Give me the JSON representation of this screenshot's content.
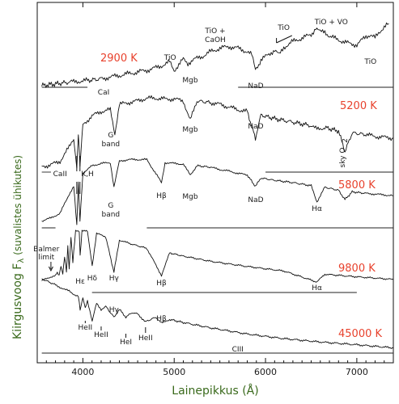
{
  "chart_data": {
    "type": "line",
    "xlabel": "Lainepikkus (Å)",
    "ylabel": "Kiirgusvoog F",
    "ylabel_sub": "λ",
    "ylabel_units": "(suvalistes ühikutes)",
    "xlim": [
      3500,
      7400
    ],
    "x_ticks": [
      4000,
      5000,
      6000,
      7000
    ],
    "series": [
      {
        "name": "2900 K",
        "x": [
          3550,
          3700,
          3850,
          3950,
          4050,
          4200,
          4300,
          4400,
          4500,
          4600,
          4700,
          4800,
          4900,
          4950,
          5000,
          5100,
          5150,
          5200,
          5300,
          5400,
          5500,
          5600,
          5700,
          5800,
          5850,
          5890,
          5950,
          6000,
          6100,
          6150,
          6200,
          6300,
          6400,
          6500,
          6550,
          6600,
          6650,
          6700,
          6800,
          6900,
          7000,
          7050,
          7100,
          7150,
          7200,
          7250,
          7300,
          7350
        ],
        "y": [
          0.02,
          0.04,
          0.06,
          0.07,
          0.08,
          0.1,
          0.12,
          0.14,
          0.16,
          0.18,
          0.2,
          0.23,
          0.27,
          0.3,
          0.2,
          0.33,
          0.28,
          0.32,
          0.36,
          0.42,
          0.46,
          0.48,
          0.46,
          0.42,
          0.38,
          0.2,
          0.32,
          0.36,
          0.44,
          0.38,
          0.47,
          0.54,
          0.58,
          0.62,
          0.7,
          0.65,
          0.66,
          0.6,
          0.56,
          0.52,
          0.5,
          0.55,
          0.6,
          0.62,
          0.58,
          0.65,
          0.72,
          0.75
        ]
      },
      {
        "name": "5200 K",
        "x": [
          3550,
          3650,
          3750,
          3850,
          3900,
          3933,
          3950,
          3968,
          4000,
          4100,
          4200,
          4300,
          4350,
          4400,
          4500,
          4600,
          4700,
          4800,
          4900,
          5000,
          5100,
          5175,
          5250,
          5400,
          5500,
          5600,
          5700,
          5800,
          5890,
          5950,
          6100,
          6300,
          6500,
          6563,
          6650,
          6800,
          6870,
          6950,
          7100,
          7200,
          7300,
          7400
        ],
        "y": [
          0.08,
          0.1,
          0.14,
          0.3,
          0.4,
          0.05,
          0.45,
          0.1,
          0.55,
          0.65,
          0.7,
          0.72,
          0.45,
          0.78,
          0.8,
          0.82,
          0.85,
          0.85,
          0.84,
          0.84,
          0.82,
          0.6,
          0.82,
          0.8,
          0.78,
          0.75,
          0.72,
          0.7,
          0.4,
          0.66,
          0.62,
          0.58,
          0.54,
          0.5,
          0.52,
          0.48,
          0.25,
          0.46,
          0.44,
          0.42,
          0.41,
          0.4
        ]
      },
      {
        "name": "5800 K",
        "x": [
          3550,
          3650,
          3750,
          3850,
          3900,
          3933,
          3950,
          3968,
          4000,
          4100,
          4200,
          4300,
          4340,
          4400,
          4500,
          4600,
          4700,
          4861,
          4900,
          5000,
          5100,
          5175,
          5250,
          5400,
          5500,
          5600,
          5700,
          5800,
          5890,
          5950,
          6100,
          6300,
          6500,
          6563,
          6650,
          6800,
          6870,
          6950,
          7100,
          7200,
          7300,
          7400
        ],
        "y": [
          0.1,
          0.14,
          0.2,
          0.45,
          0.55,
          0.05,
          0.6,
          0.1,
          0.72,
          0.82,
          0.85,
          0.86,
          0.55,
          0.88,
          0.9,
          0.9,
          0.9,
          0.6,
          0.86,
          0.85,
          0.84,
          0.7,
          0.82,
          0.8,
          0.77,
          0.75,
          0.72,
          0.7,
          0.55,
          0.66,
          0.63,
          0.6,
          0.56,
          0.35,
          0.54,
          0.5,
          0.38,
          0.48,
          0.46,
          0.45,
          0.44,
          0.43
        ]
      },
      {
        "name": "9800 K",
        "x": [
          3550,
          3600,
          3650,
          3700,
          3720,
          3740,
          3760,
          3780,
          3800,
          3820,
          3835,
          3850,
          3870,
          3890,
          3920,
          3960,
          3970,
          3990,
          4050,
          4102,
          4150,
          4250,
          4340,
          4400,
          4500,
          4700,
          4861,
          4950,
          5100,
          5400,
          5800,
          6200,
          6563,
          6650,
          7000,
          7400
        ],
        "y": [
          0.22,
          0.25,
          0.28,
          0.3,
          0.35,
          0.3,
          0.45,
          0.32,
          0.6,
          0.35,
          0.75,
          0.4,
          0.9,
          0.5,
          1.0,
          0.98,
          0.6,
          1.0,
          0.98,
          0.45,
          0.95,
          0.9,
          0.35,
          0.85,
          0.8,
          0.72,
          0.3,
          0.65,
          0.6,
          0.52,
          0.44,
          0.37,
          0.2,
          0.32,
          0.28,
          0.24
        ]
      },
      {
        "name": "45000 K",
        "x": [
          3550,
          3700,
          3800,
          3850,
          3900,
          3950,
          3970,
          4000,
          4026,
          4050,
          4102,
          4150,
          4200,
          4250,
          4340,
          4400,
          4471,
          4541,
          4600,
          4686,
          4800,
          4861,
          4950,
          5100,
          5400,
          5800,
          6200,
          6563,
          7000,
          7400
        ],
        "y": [
          1.0,
          0.92,
          0.86,
          0.84,
          0.8,
          0.77,
          0.6,
          0.75,
          0.62,
          0.72,
          0.45,
          0.68,
          0.6,
          0.64,
          0.5,
          0.6,
          0.5,
          0.56,
          0.54,
          0.44,
          0.5,
          0.42,
          0.47,
          0.43,
          0.36,
          0.28,
          0.22,
          0.18,
          0.14,
          0.1
        ]
      }
    ],
    "annotations": {
      "s2900": [
        {
          "text": "CaI",
          "x": 4227
        },
        {
          "text": "TiO",
          "x": 4955
        },
        {
          "text": "Mgb",
          "x": 5175
        },
        {
          "text": "TiO +",
          "x": 5450
        },
        {
          "text": "CaOH",
          "x": 5450
        },
        {
          "text": "NaD",
          "x": 5893
        },
        {
          "text": "TiO",
          "x": 6200
        },
        {
          "text": "TiO + VO",
          "x": 6700
        },
        {
          "text": "TiO",
          "x": 7150
        }
      ],
      "s5200": [
        {
          "text": "G",
          "x": 4305
        },
        {
          "text": "band",
          "x": 4305
        },
        {
          "text": "Mgb",
          "x": 5175
        },
        {
          "text": "NaD",
          "x": 5893
        },
        {
          "text": "sky O",
          "x": 6870
        },
        {
          "text": "2",
          "x": 6870
        },
        {
          "text": "CaII",
          "x": 3850
        },
        {
          "text": "K,H",
          "x": 4060
        }
      ],
      "s5800": [
        {
          "text": "G",
          "x": 4305
        },
        {
          "text": "band",
          "x": 4305
        },
        {
          "text": "Hβ",
          "x": 4861
        },
        {
          "text": "Mgb",
          "x": 5175
        },
        {
          "text": "NaD",
          "x": 5893
        },
        {
          "text": "Hα",
          "x": 6563
        }
      ],
      "s9800": [
        {
          "text": "Balmer",
          "x": 3600
        },
        {
          "text": "limit",
          "x": 3600
        },
        {
          "text": "Hε",
          "x": 3970
        },
        {
          "text": "Hδ",
          "x": 4102
        },
        {
          "text": "Hγ",
          "x": 4340
        },
        {
          "text": "Hβ",
          "x": 4861
        },
        {
          "text": "Hα",
          "x": 6563
        }
      ],
      "s45000": [
        {
          "text": "HeII",
          "x": 4026
        },
        {
          "text": "HeII",
          "x": 4200
        },
        {
          "text": "Hγ",
          "x": 4340
        },
        {
          "text": "HeI",
          "x": 4471
        },
        {
          "text": "HeII",
          "x": 4686
        },
        {
          "text": "Hβ",
          "x": 4861
        },
        {
          "text": "CIII",
          "x": 5696
        }
      ]
    },
    "colors": {
      "temperature_labels": "#e8412c",
      "axis_titles": "#3a6a1c",
      "spectra": "#111111"
    }
  }
}
